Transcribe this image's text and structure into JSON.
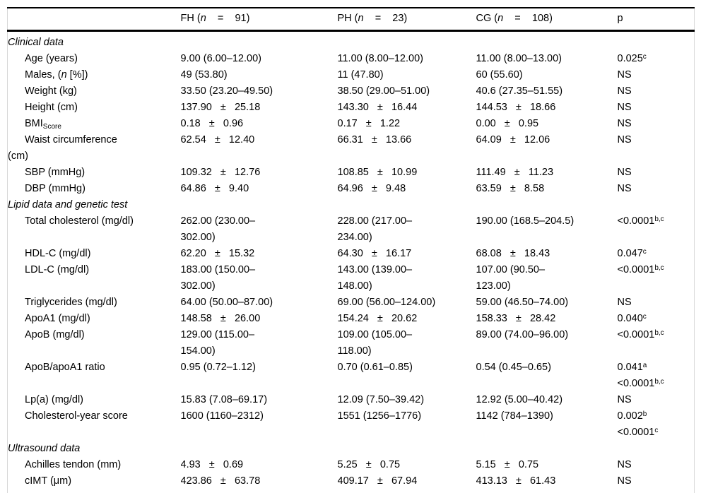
{
  "table": {
    "columns": [
      "",
      "FH (*n*    =    91)",
      "PH (*n*    =    23)",
      "CG (*n*    =    108)",
      "p"
    ],
    "sections": [
      {
        "title": "Clinical data",
        "rows": [
          [
            "Age (years)",
            "9.00 (6.00–12.00)",
            "11.00 (8.00–12.00)",
            "11.00 (8.00–13.00)",
            "0.025^c^"
          ],
          [
            "Males, (*n* [%])",
            "49 (53.80)",
            "11 (47.80)",
            "60 (55.60)",
            "NS"
          ],
          [
            "Weight (kg)",
            "33.50 (23.20–49.50)",
            "38.50 (29.00–51.00)",
            "40.6 (27.35–51.55)",
            "NS"
          ],
          [
            "Height (cm)",
            "137.90   ±   25.18",
            "143.30   ±   16.44",
            "144.53   ±   18.66",
            "NS"
          ],
          [
            "BMI~Score~",
            "0.18   ±   0.96",
            "0.17   ±   1.22",
            "0.00   ±   0.95",
            "NS"
          ],
          [
            "Waist circumference\n(cm)",
            "62.54   ±   12.40",
            "66.31   ±   13.66",
            "64.09   ±   12.06",
            "NS"
          ],
          [
            "SBP (mmHg)",
            "109.32   ±   12.76",
            "108.85   ±   10.99",
            "111.49   ±   11.23",
            "NS"
          ],
          [
            "DBP (mmHg)",
            "64.86   ±   9.40",
            "64.96   ±   9.48",
            "63.59   ±   8.58",
            "NS"
          ]
        ]
      },
      {
        "title": "Lipid data and genetic test",
        "rows": [
          [
            "Total cholesterol (mg/dl)",
            "262.00 (230.00–\n302.00)",
            "228.00 (217.00–\n234.00)",
            "190.00 (168.5–204.5)",
            "<0.0001^b,c^"
          ],
          [
            "HDL-C (mg/dl)",
            "62.20   ±   15.32",
            "64.30   ±   16.17",
            "68.08   ±   18.43",
            "0.047^c^"
          ],
          [
            "LDL-C (mg/dl)",
            "183.00 (150.00–\n302.00)",
            "143.00 (139.00–\n148.00)",
            "107.00 (90.50–\n123.00)",
            "<0.0001^b,c^"
          ],
          [
            "Triglycerides (mg/dl)",
            "64.00 (50.00–87.00)",
            "69.00 (56.00–124.00)",
            "59.00 (46.50–74.00)",
            "NS"
          ],
          [
            "ApoA1 (mg/dl)",
            "148.58   ±   26.00",
            "154.24   ±   20.62",
            "158.33   ±   28.42",
            "0.040^c^"
          ],
          [
            "ApoB (mg/dl)",
            "129.00 (115.00–\n154.00)",
            "109.00 (105.00–\n118.00)",
            "89.00 (74.00–96.00)",
            "<0.0001^b,c^"
          ],
          [
            "ApoB/apoA1 ratio",
            "0.95 (0.72–1.12)",
            "0.70 (0.61–0.85)",
            "0.54 (0.45–0.65)",
            "0.041^a^\n<0.0001^b,c^"
          ],
          [
            "Lp(a) (mg/dl)",
            "15.83 (7.08–69.17)",
            "12.09 (7.50–39.42)",
            "12.92 (5.00–40.42)",
            "NS"
          ],
          [
            "Cholesterol-year score",
            "1600 (1160–2312)",
            "1551 (1256–1776)",
            "1142 (784–1390)",
            "0.002^b^\n<0.0001^c^"
          ]
        ]
      },
      {
        "title": "Ultrasound data",
        "rows": [
          [
            "Achilles tendon (mm)",
            "4.93   ±   0.69",
            "5.25   ±   0.75",
            "5.15   ±   0.75",
            "NS"
          ],
          [
            "cIMT (μm)",
            "423.86   ±   63.78",
            "409.17   ±   67.94",
            "413.13   ±   61.43",
            "NS"
          ]
        ]
      }
    ]
  }
}
